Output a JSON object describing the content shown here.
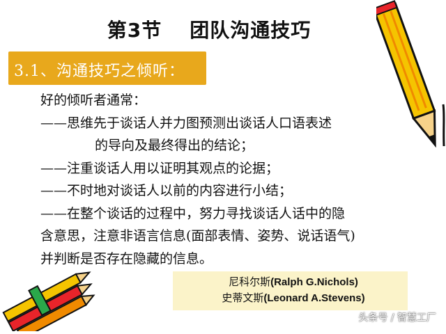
{
  "slide": {
    "title_part1": "第3节",
    "title_part2": "团队沟通技巧",
    "section_label": "3.1、沟通技巧之倾听：",
    "body_lines": [
      "好的倾听者通常：",
      "——思维先于谈话人并力图预测出谈话人口语表述",
      "的导向及最终得出的结论；",
      "——注重谈话人用以证明其观点的论据；",
      "——不时地对谈话人以前的内容进行小结；",
      "——在整个谈话的过程中，努力寻找谈话人话中的隐",
      "含意思，注意非语言信息(面部表情、姿势、说话语气)",
      "并判断是否存在隐藏的信息。"
    ],
    "citation": {
      "author1_cn": "尼科尔斯",
      "author1_latin": "(Ralph G.Nichols)",
      "author2_cn": "史蒂文斯",
      "author2_latin": "(Leonard A.Stevens)"
    },
    "watermark": "头条号 / 智慧工厂"
  },
  "colors": {
    "banner": "#e8a81c",
    "citation_bg": "#fbf3c9",
    "pencil_yellow": "#f5c400",
    "pencil_orange": "#f08a00",
    "pencil_red": "#e8242a",
    "pencil_black": "#111111"
  },
  "icons": {
    "top_right": "pencil-icon",
    "bottom_left": "pencils-bundle-icon"
  }
}
